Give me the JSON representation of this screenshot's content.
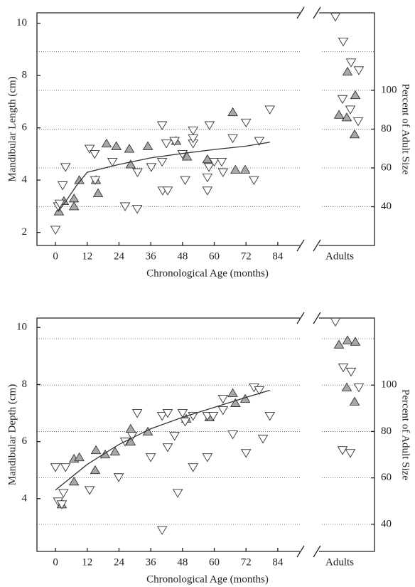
{
  "chart_data": [
    {
      "type": "scatter",
      "x_label": "Chronological Age (months)",
      "y_label": "Mandibular  Length (cm)",
      "y2_label": "Percent of Adult Size",
      "adults_label": "Adults",
      "xlim": [
        -7,
        94.5
      ],
      "xticks": [
        0,
        12,
        24,
        36,
        48,
        60,
        72,
        84
      ],
      "ylim": [
        1.5,
        10.4
      ],
      "yticks": [
        2,
        4,
        6,
        8,
        10
      ],
      "y2lim": [
        20,
        140
      ],
      "y2ticks": [
        40,
        60,
        80,
        100
      ],
      "y2grid": [
        40,
        60,
        80,
        100,
        120
      ],
      "series": [
        {
          "marker": "triangle-up",
          "color": "#a8a8a8",
          "x": [
            1.3,
            3.2,
            7,
            7,
            9,
            15.3,
            16.1,
            19.3,
            23,
            27.9,
            28.4,
            34.9,
            45.6,
            49.7,
            57.4,
            67,
            68,
            71.7
          ],
          "values": [
            2.8,
            3.2,
            3.3,
            3.0,
            4.0,
            4.0,
            3.5,
            5.4,
            5.3,
            5.2,
            4.6,
            5.3,
            5.5,
            4.9,
            4.8,
            6.6,
            4.4,
            4.4
          ]
        },
        {
          "marker": "triangle-down",
          "color": "#ffffff",
          "x": [
            0,
            1,
            1.6,
            2.7,
            3.8,
            12.9,
            14.8,
            15,
            21.5,
            26.3,
            30.9,
            31,
            36.2,
            40.3,
            40.5,
            40.3,
            41.9,
            42.4,
            45,
            48,
            49,
            52,
            52,
            52,
            57.4,
            57.4,
            58.2,
            58,
            60,
            63.3,
            62.8,
            67,
            72,
            75,
            77,
            81
          ],
          "values": [
            2.1,
            3.0,
            3.1,
            3.8,
            4.5,
            5.2,
            5.0,
            4.0,
            4.7,
            3.0,
            2.9,
            4.3,
            4.5,
            6.1,
            3.6,
            4.7,
            5.4,
            3.6,
            5.5,
            5.0,
            4.0,
            5.4,
            5.9,
            5.6,
            4.1,
            3.6,
            6.1,
            4.5,
            4.7,
            4.3,
            4.7,
            5.6,
            6.2,
            4.0,
            5.5,
            6.7
          ]
        },
        {
          "marker": "line",
          "color": "#333333",
          "x": [
            1,
            4,
            8,
            12,
            18,
            24,
            36,
            48,
            60,
            72,
            81
          ],
          "values": [
            2.8,
            3.2,
            3.8,
            4.3,
            4.45,
            4.6,
            4.85,
            5.02,
            5.17,
            5.3,
            5.45
          ]
        }
      ],
      "adult_series": [
        {
          "marker": "triangle-down",
          "color": "#ffffff",
          "values": [
            10.25,
            9.3,
            8.5,
            8.2,
            7.1,
            6.7,
            6.25
          ]
        },
        {
          "marker": "triangle-up",
          "color": "#a8a8a8",
          "values": [
            8.15,
            7.25,
            6.5,
            6.4,
            5.75
          ]
        }
      ]
    },
    {
      "type": "scatter",
      "x_label": "Chronological Age (months)",
      "y_label": "Mandibular  Depth (cm)",
      "y2_label": "Percent of Adult Size",
      "adults_label": "Adults",
      "xlim": [
        -7,
        94.5
      ],
      "xticks": [
        0,
        12,
        24,
        36,
        48,
        60,
        72,
        84
      ],
      "ylim": [
        2.15,
        10.33
      ],
      "yticks": [
        4,
        6,
        8,
        10
      ],
      "y2lim": [
        28.3,
        128.9
      ],
      "y2ticks": [
        40,
        60,
        80,
        100
      ],
      "y2grid": [
        40,
        60,
        80,
        100,
        120
      ],
      "series": [
        {
          "marker": "triangle-up",
          "color": "#a8a8a8",
          "x": [
            2.4,
            7,
            7,
            9,
            15,
            15.3,
            18.8,
            22.5,
            28.4,
            28.4,
            34.9,
            49.4,
            58.2,
            67,
            68,
            71.7
          ],
          "values": [
            3.8,
            4.6,
            5.4,
            5.45,
            5.0,
            5.7,
            5.55,
            5.65,
            6.0,
            6.45,
            6.35,
            6.8,
            6.85,
            7.7,
            7.35,
            7.5
          ]
        },
        {
          "marker": "triangle-down",
          "color": "#ffffff",
          "x": [
            0,
            1,
            2.4,
            3,
            3.8,
            12.9,
            23.9,
            26.3,
            29,
            30.9,
            36,
            40.3,
            40.3,
            42.4,
            42.4,
            45,
            46.2,
            48,
            49,
            52,
            52,
            57.4,
            57.4,
            59.6,
            63.3,
            63.3,
            67,
            72,
            75,
            77,
            78.4,
            81
          ],
          "values": [
            5.1,
            3.9,
            3.8,
            4.2,
            5.1,
            4.3,
            4.75,
            6.0,
            6.2,
            7.0,
            5.45,
            6.9,
            2.9,
            7.0,
            5.8,
            6.2,
            4.2,
            7.0,
            6.7,
            6.9,
            5.1,
            6.9,
            5.45,
            6.9,
            7.5,
            7.1,
            6.25,
            5.6,
            7.9,
            7.8,
            6.1,
            6.9
          ]
        },
        {
          "marker": "line",
          "color": "#333333",
          "x": [
            0,
            12,
            24,
            36,
            48,
            60,
            72,
            81
          ],
          "values": [
            4.3,
            5.2,
            5.9,
            6.45,
            6.85,
            7.2,
            7.55,
            7.8
          ]
        }
      ],
      "adult_series": [
        {
          "marker": "triangle-down",
          "color": "#ffffff",
          "values": [
            10.2,
            8.6,
            8.45,
            7.9,
            5.7,
            5.6
          ]
        },
        {
          "marker": "triangle-up",
          "color": "#a8a8a8",
          "values": [
            9.55,
            9.5,
            9.4,
            7.9,
            7.4
          ]
        }
      ]
    }
  ]
}
